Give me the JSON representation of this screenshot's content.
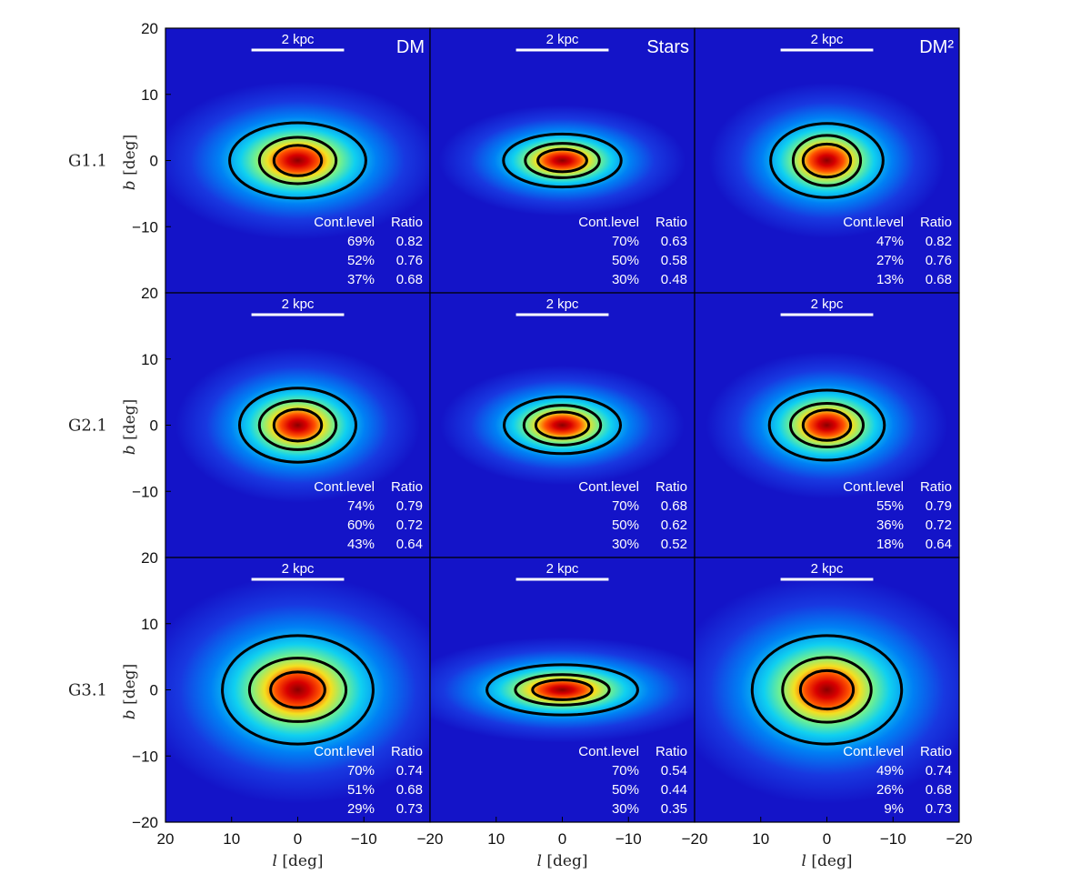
{
  "chart_data": {
    "type": "heatmap",
    "xlabel_var": "l",
    "xlabel_unit": "[deg]",
    "ylabel_var": "b",
    "ylabel_unit": "[deg]",
    "xlim": [
      20,
      -20
    ],
    "ylim": [
      -20,
      20
    ],
    "xticks": [
      20,
      10,
      0,
      -10,
      -20
    ],
    "yticks": [
      20,
      10,
      0,
      -10,
      -20
    ],
    "columns": [
      "DM",
      "Stars",
      "DM²"
    ],
    "rows": [
      "G1.1",
      "G2.1",
      "G3.1"
    ],
    "scale_bar_label": "2 kpc",
    "scale_bar_deg": [
      7,
      -7
    ],
    "table_headers": [
      "Cont.level",
      "Ratio"
    ],
    "colors": {
      "background": "#1414c8",
      "contour": "#000000",
      "peak": "#b00000"
    },
    "panels": [
      {
        "row": "G1.1",
        "column": "DM",
        "levels": [
          "69%",
          "52%",
          "37%"
        ],
        "ratios": [
          "0.82",
          "0.76",
          "0.68"
        ],
        "contours_deg": [
          [
            10.3,
            5.7
          ],
          [
            5.8,
            3.5
          ],
          [
            3.6,
            2.3
          ]
        ]
      },
      {
        "row": "G1.1",
        "column": "Stars",
        "levels": [
          "70%",
          "50%",
          "30%"
        ],
        "ratios": [
          "0.63",
          "0.58",
          "0.48"
        ],
        "contours_deg": [
          [
            8.9,
            4.0
          ],
          [
            5.6,
            2.6
          ],
          [
            3.7,
            1.7
          ]
        ]
      },
      {
        "row": "G1.1",
        "column": "DM²",
        "levels": [
          "47%",
          "27%",
          "13%"
        ],
        "ratios": [
          "0.82",
          "0.76",
          "0.68"
        ],
        "contours_deg": [
          [
            8.5,
            5.6
          ],
          [
            5.1,
            3.8
          ],
          [
            3.6,
            2.5
          ]
        ]
      },
      {
        "row": "G2.1",
        "column": "DM",
        "levels": [
          "74%",
          "60%",
          "43%"
        ],
        "ratios": [
          "0.79",
          "0.72",
          "0.64"
        ],
        "contours_deg": [
          [
            8.8,
            5.6
          ],
          [
            5.8,
            3.7
          ],
          [
            3.6,
            2.4
          ]
        ]
      },
      {
        "row": "G2.1",
        "column": "Stars",
        "levels": [
          "70%",
          "50%",
          "30%"
        ],
        "ratios": [
          "0.68",
          "0.62",
          "0.52"
        ],
        "contours_deg": [
          [
            8.8,
            4.3
          ],
          [
            5.8,
            3.0
          ],
          [
            4.0,
            2.0
          ]
        ]
      },
      {
        "row": "G2.1",
        "column": "DM²",
        "levels": [
          "55%",
          "36%",
          "18%"
        ],
        "ratios": [
          "0.79",
          "0.72",
          "0.64"
        ],
        "contours_deg": [
          [
            8.7,
            5.3
          ],
          [
            5.5,
            3.3
          ],
          [
            3.6,
            2.3
          ]
        ]
      },
      {
        "row": "G3.1",
        "column": "DM",
        "levels": [
          "70%",
          "51%",
          "29%"
        ],
        "ratios": [
          "0.74",
          "0.68",
          "0.73"
        ],
        "contours_deg": [
          [
            11.4,
            8.2
          ],
          [
            7.3,
            4.8
          ],
          [
            4.1,
            2.7
          ]
        ]
      },
      {
        "row": "G3.1",
        "column": "Stars",
        "levels": [
          "70%",
          "50%",
          "30%"
        ],
        "ratios": [
          "0.54",
          "0.44",
          "0.35"
        ],
        "contours_deg": [
          [
            11.4,
            3.8
          ],
          [
            7.1,
            2.3
          ],
          [
            4.5,
            1.5
          ]
        ]
      },
      {
        "row": "G3.1",
        "column": "DM²",
        "levels": [
          "49%",
          "26%",
          "9%"
        ],
        "ratios": [
          "0.74",
          "0.68",
          "0.73"
        ],
        "contours_deg": [
          [
            11.3,
            8.2
          ],
          [
            6.7,
            4.9
          ],
          [
            4.0,
            2.9
          ]
        ]
      }
    ]
  }
}
